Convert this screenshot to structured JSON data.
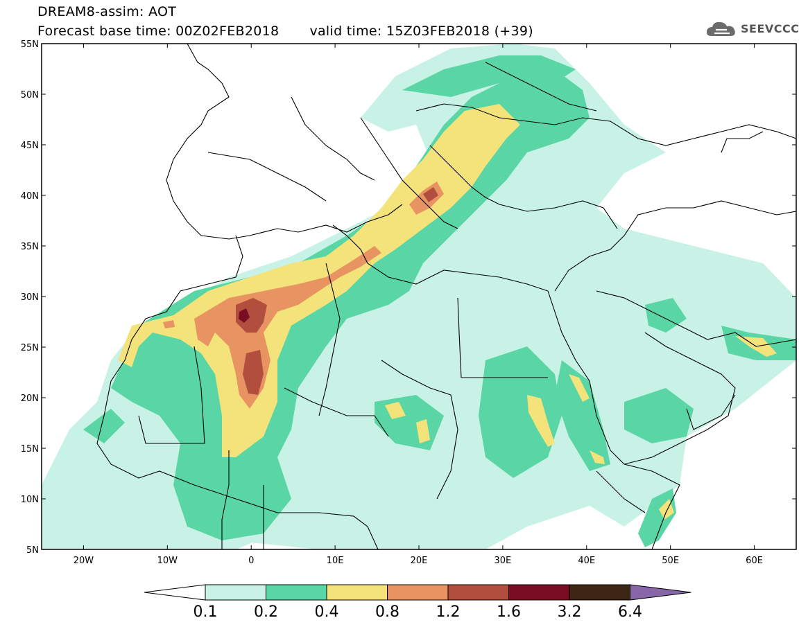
{
  "header": {
    "title": "DREAM8-assim: AOT",
    "base_time_label": "Forecast base time: 00Z02FEB2018",
    "valid_time_label": "valid time: 15Z03FEB2018 (+39)"
  },
  "logo": {
    "text": "SEEVCCC",
    "icon": "cloud-icon"
  },
  "map": {
    "lat_ticks": [
      "55N",
      "50N",
      "45N",
      "40N",
      "35N",
      "30N",
      "25N",
      "20N",
      "15N",
      "10N",
      "5N"
    ],
    "lon_ticks": [
      "20W",
      "10W",
      "0",
      "10E",
      "20E",
      "30E",
      "40E",
      "50E",
      "60E"
    ],
    "extent": {
      "lon_min": -25,
      "lon_max": 65,
      "lat_min": 5,
      "lat_max": 55
    }
  },
  "colorbar": {
    "labels": [
      "0.1",
      "0.2",
      "0.4",
      "0.8",
      "1.2",
      "1.6",
      "3.2",
      "6.4"
    ],
    "colors": [
      "#ffffff",
      "#c8f2e6",
      "#5ad6a6",
      "#f3e37a",
      "#e79462",
      "#b14e3e",
      "#7a0c24",
      "#3d2616",
      "#8966a8"
    ]
  },
  "chart_data": {
    "type": "heatmap",
    "variable": "AOT",
    "levels": [
      0.1,
      0.2,
      0.4,
      0.8,
      1.2,
      1.6,
      3.2,
      6.4
    ],
    "level_colors": [
      "#c8f2e6",
      "#5ad6a6",
      "#f3e37a",
      "#e79462",
      "#b14e3e",
      "#7a0c24",
      "#3d2616",
      "#8966a8"
    ],
    "xlim": [
      -25,
      65
    ],
    "ylim": [
      5,
      55
    ]
  }
}
